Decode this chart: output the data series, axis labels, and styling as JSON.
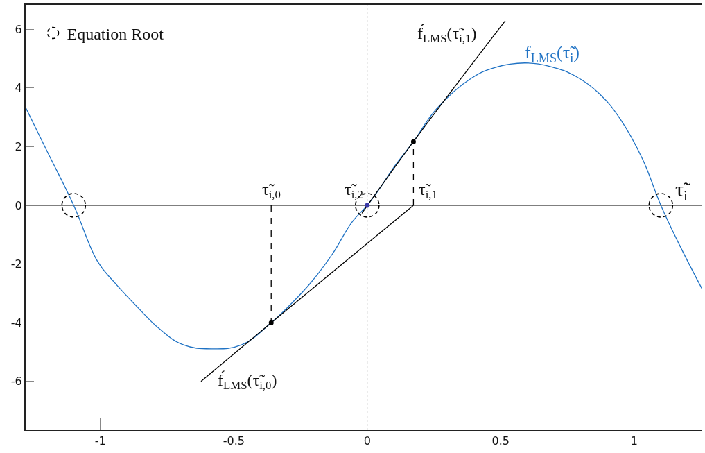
{
  "chart_data": {
    "type": "line",
    "xlabel": "τ̃$_{i}$",
    "xlim": [
      -1.28,
      1.255
    ],
    "ylim": [
      -7.66,
      6.83
    ],
    "xticks": [
      -1,
      -0.5,
      0,
      0.5,
      1
    ],
    "yticks": [
      -6,
      -4,
      -2,
      0,
      2,
      4,
      6
    ],
    "grid": false,
    "legend": "top left",
    "series": [
      {
        "type": "line",
        "name": "f$_{LMS}$(τ̃$_{i}$)",
        "color": "#1f72c4",
        "marker": "none",
        "line_style": "solid",
        "x": [
          -1.28,
          -1.2,
          -1.1,
          -1.01,
          -0.95,
          -0.86,
          -0.78,
          -0.69,
          -0.585,
          -0.47,
          -0.36,
          -0.29,
          -0.21,
          -0.13,
          -0.057,
          0,
          0.05,
          0.1,
          0.173,
          0.26,
          0.39,
          0.48,
          0.59,
          0.69,
          0.78,
          0.87,
          0.95,
          1.03,
          1.1,
          1.166,
          1.255
        ],
        "values": [
          3.33,
          1.85,
          0,
          -1.92,
          -2.6,
          -3.48,
          -4.2,
          -4.75,
          -4.89,
          -4.75,
          -4.0,
          -3.4,
          -2.62,
          -1.65,
          -0.57,
          0,
          0.62,
          1.3,
          2.17,
          3.29,
          4.33,
          4.7,
          4.85,
          4.72,
          4.4,
          3.8,
          2.91,
          1.6,
          0,
          -1.28,
          -2.86
        ]
      },
      {
        "type": "line",
        "color": "#000000",
        "line_style": "solid",
        "x": [
          -0.02,
          0.173,
          0.517
        ],
        "values": [
          -0.27,
          2.17,
          6.29
        ]
      },
      {
        "type": "line",
        "color": "#000000",
        "line_style": "solid",
        "x": [
          -0.623,
          -0.36,
          0.173
        ],
        "values": [
          -6.0,
          -4.0,
          0
        ]
      },
      {
        "type": "line",
        "color": "#000000",
        "line_style": "dashed",
        "x": [
          -0.36,
          -0.36
        ],
        "values": [
          0,
          -4.0
        ]
      },
      {
        "type": "line",
        "color": "#000000",
        "line_style": "dashed",
        "x": [
          0.173,
          0.173
        ],
        "values": [
          0,
          2.17
        ]
      },
      {
        "type": "scatter",
        "color": "#000000",
        "marker": "circle",
        "x": [
          -0.36,
          0.173
        ],
        "values": [
          -4.0,
          2.17
        ]
      },
      {
        "type": "scatter",
        "color": "#3a3aa8",
        "marker": "circle",
        "x": [
          0
        ],
        "values": [
          0
        ]
      },
      {
        "type": "scatter",
        "name": "Equation Root",
        "color": "#000000",
        "marker": "circle",
        "line_style": "dashed",
        "x": [
          -1.1,
          0,
          1.1
        ],
        "values": [
          0,
          0,
          0
        ]
      }
    ],
    "ref_lines": [
      {
        "axis": "x",
        "value": 0,
        "color": "#bbbbbb",
        "line_style": "dotted"
      },
      {
        "axis": "y",
        "value": 0,
        "color": "#000000",
        "line_style": "solid"
      }
    ],
    "annotations": [
      {
        "text": "f́$_{LMS}$(τ̃$_{i,1}$)",
        "x": 0.517,
        "y": 6.29
      },
      {
        "text": "f́$_{LMS}$(τ̃$_{i,0}$)",
        "x": -0.623,
        "y": -6.0
      },
      {
        "text": "τ̃$_{i,0}$",
        "x": -0.36,
        "y": 0
      },
      {
        "text": "τ̃$_{i,2}$",
        "x": 0,
        "y": 0
      },
      {
        "text": "τ̃$_{i,1}$",
        "x": 0.173,
        "y": 0
      }
    ]
  }
}
